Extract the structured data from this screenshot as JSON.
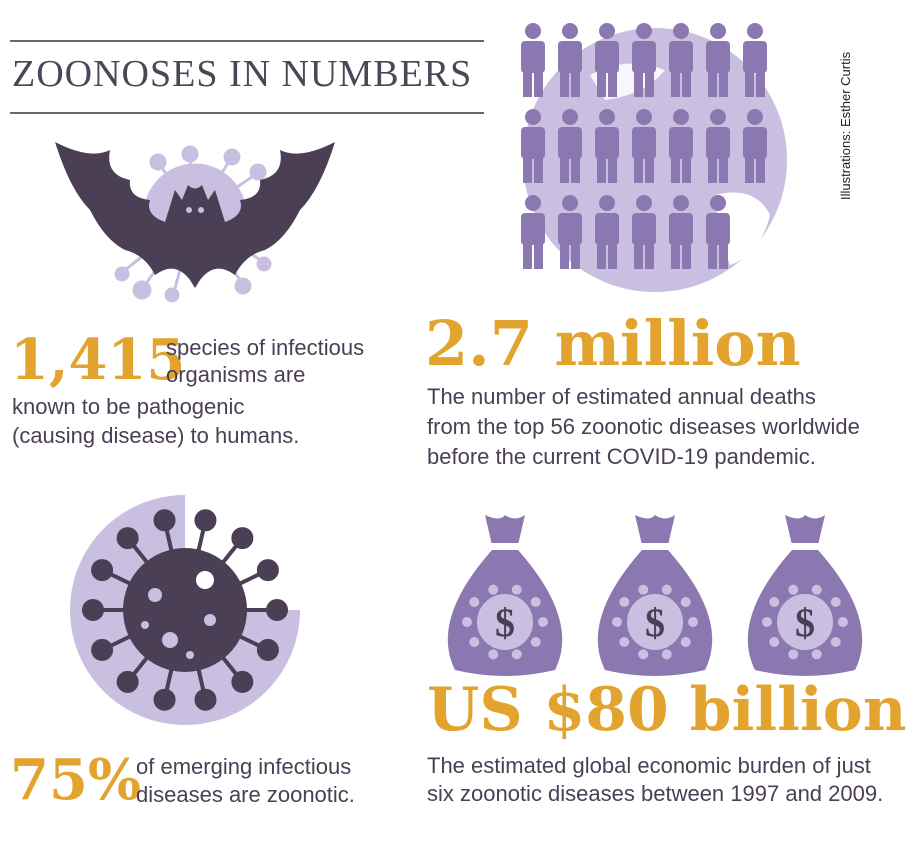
{
  "title": "ZOONOSES IN NUMBERS",
  "credit": "Illustrations: Esther Curtis",
  "colors": {
    "accent": "#e2a42e",
    "dark_purple": "#4b3f55",
    "mid_purple": "#8b78b0",
    "light_purple": "#c9bfe0"
  },
  "stat_species": {
    "value": "1,415",
    "line1": "species of infectious",
    "line2": "organisms are",
    "line3": "known to be pathogenic",
    "line4": "(causing disease) to humans."
  },
  "stat_deaths": {
    "value": "2.7 million",
    "line1": "The number of estimated annual deaths",
    "line2": "from the top 56 zoonotic diseases worldwide",
    "line3": "before the current COVID-19 pandemic."
  },
  "stat_emerging": {
    "value": "75%",
    "line1": "of emerging infectious",
    "line2": "diseases are zoonotic."
  },
  "stat_economic": {
    "value": "US $80 billion",
    "line1": "The estimated global economic burden of just",
    "line2": "six zoonotic diseases between 1997 and 2009."
  },
  "icons": {
    "bat": "bat-icon",
    "people": "person-icon",
    "globe": "globe-icon",
    "virus": "virus-icon",
    "money_bag": "money-bag-icon"
  },
  "money_symbol": "$"
}
